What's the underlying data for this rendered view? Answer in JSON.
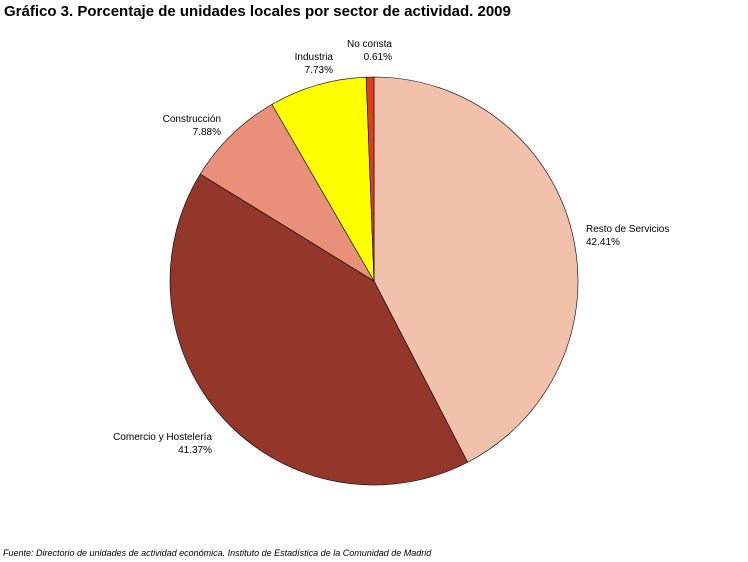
{
  "title": "Gráfico 3. Porcentaje de unidades locales por sector de actividad. 2009",
  "source": "Fuente: Directorio de unidades de actividad económica. Instituto de Estadística de la Comunidad de Madrid",
  "chart_data": {
    "type": "pie",
    "title": "Gráfico 3. Porcentaje de unidades locales por sector de actividad. 2009",
    "start": "12 o'clock",
    "direction": "clockwise",
    "slices": [
      {
        "label": "Resto de Servicios",
        "value": 42.41,
        "value_label": "42.41%",
        "color": "#F2C1AC"
      },
      {
        "label": "Comercio y Hostelería",
        "value": 41.37,
        "value_label": "41.37%",
        "color": "#94372B"
      },
      {
        "label": "Construcción",
        "value": 7.88,
        "value_label": "7.88%",
        "color": "#E8907A"
      },
      {
        "label": "Industria",
        "value": 7.73,
        "value_label": "7.73%",
        "color": "#FFFF00"
      },
      {
        "label": "No consta",
        "value": 0.61,
        "value_label": "0.61%",
        "color": "#E03C1F"
      }
    ]
  }
}
